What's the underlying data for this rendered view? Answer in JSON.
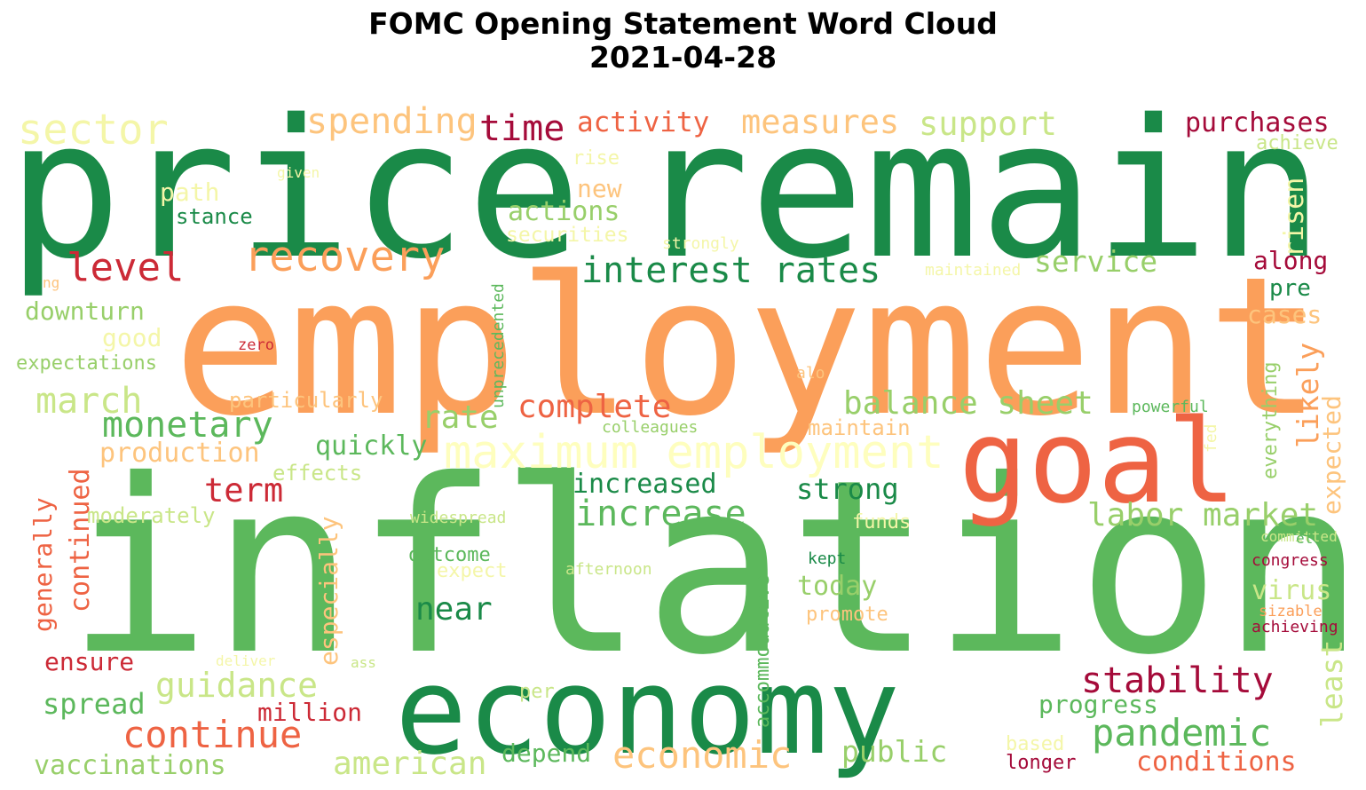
{
  "title": {
    "line1": "FOMC Opening Statement Word Cloud",
    "line2": "2021-04-28"
  },
  "colors": {
    "dark_green": "#1a8a48",
    "green": "#5cb85c",
    "light_green": "#98cf6a",
    "pale_green": "#c9e688",
    "pale_yellow": "#f4f6a8",
    "cream": "#fefebe",
    "light_orange": "#fdc47d",
    "orange": "#fb9f5a",
    "red_orange": "#ee6343",
    "red": "#cc2a36",
    "crimson": "#a50b3a"
  },
  "words": [
    {
      "text": "price",
      "color": "dark_green"
    },
    {
      "text": "remain",
      "color": "dark_green"
    },
    {
      "text": "employment",
      "color": "orange"
    },
    {
      "text": "inflation",
      "color": "green"
    },
    {
      "text": "goal",
      "color": "red_orange"
    },
    {
      "text": "economy",
      "color": "dark_green"
    },
    {
      "text": "maximum employment",
      "color": "cream"
    },
    {
      "text": "sector",
      "color": "pale_yellow"
    },
    {
      "text": "spending",
      "color": "light_orange"
    },
    {
      "text": "time",
      "color": "crimson"
    },
    {
      "text": "activity",
      "color": "red_orange"
    },
    {
      "text": "measures",
      "color": "light_orange"
    },
    {
      "text": "support",
      "color": "pale_green"
    },
    {
      "text": "purchases",
      "color": "crimson"
    },
    {
      "text": "achieve",
      "color": "pale_green"
    },
    {
      "text": "rise",
      "color": "pale_yellow"
    },
    {
      "text": "given",
      "color": "pale_yellow"
    },
    {
      "text": "path",
      "color": "pale_yellow"
    },
    {
      "text": "new",
      "color": "light_orange"
    },
    {
      "text": "stance",
      "color": "dark_green"
    },
    {
      "text": "actions",
      "color": "light_green"
    },
    {
      "text": "securities",
      "color": "pale_yellow"
    },
    {
      "text": "strongly",
      "color": "pale_yellow"
    },
    {
      "text": "risen",
      "color": "pale_yellow"
    },
    {
      "text": "level",
      "color": "red"
    },
    {
      "text": "recovery",
      "color": "orange"
    },
    {
      "text": "interest rates",
      "color": "dark_green"
    },
    {
      "text": "service",
      "color": "light_green"
    },
    {
      "text": "maintained",
      "color": "pale_yellow"
    },
    {
      "text": "along",
      "color": "crimson"
    },
    {
      "text": "ng",
      "color": "light_orange"
    },
    {
      "text": "pre",
      "color": "dark_green"
    },
    {
      "text": "downturn",
      "color": "light_green"
    },
    {
      "text": "cases",
      "color": "light_orange"
    },
    {
      "text": "good",
      "color": "pale_yellow"
    },
    {
      "text": "zero",
      "color": "red"
    },
    {
      "text": "unprecedented",
      "color": "green"
    },
    {
      "text": "expectations",
      "color": "light_green"
    },
    {
      "text": "alo",
      "color": "light_orange"
    },
    {
      "text": "likely",
      "color": "orange"
    },
    {
      "text": "march",
      "color": "pale_green"
    },
    {
      "text": "particularly",
      "color": "light_orange"
    },
    {
      "text": "monetary",
      "color": "green"
    },
    {
      "text": "rate",
      "color": "light_green"
    },
    {
      "text": "complete",
      "color": "red_orange"
    },
    {
      "text": "balance sheet",
      "color": "light_green"
    },
    {
      "text": "powerful",
      "color": "green"
    },
    {
      "text": "everything",
      "color": "light_green"
    },
    {
      "text": "expected",
      "color": "light_orange"
    },
    {
      "text": "colleagues",
      "color": "light_green"
    },
    {
      "text": "maintain",
      "color": "light_orange"
    },
    {
      "text": "fed",
      "color": "pale_yellow"
    },
    {
      "text": "continued",
      "color": "red_orange"
    },
    {
      "text": "quickly",
      "color": "green"
    },
    {
      "text": "production",
      "color": "light_orange"
    },
    {
      "text": "effects",
      "color": "pale_green"
    },
    {
      "text": "term",
      "color": "red"
    },
    {
      "text": "increased",
      "color": "dark_green"
    },
    {
      "text": "strong",
      "color": "dark_green"
    },
    {
      "text": "generally",
      "color": "red_orange"
    },
    {
      "text": "moderately",
      "color": "pale_green"
    },
    {
      "text": "increase",
      "color": "green"
    },
    {
      "text": "labor market",
      "color": "light_green"
    },
    {
      "text": "widespread",
      "color": "pale_green"
    },
    {
      "text": "funds",
      "color": "pale_yellow"
    },
    {
      "text": "especially",
      "color": "light_orange"
    },
    {
      "text": "committed",
      "color": "pale_green"
    },
    {
      "text": "outcome",
      "color": "green"
    },
    {
      "text": "expect",
      "color": "pale_yellow"
    },
    {
      "text": "afternoon",
      "color": "pale_green"
    },
    {
      "text": "et",
      "color": "green"
    },
    {
      "text": "kept",
      "color": "dark_green"
    },
    {
      "text": "congress",
      "color": "crimson"
    },
    {
      "text": "accommodative",
      "color": "green"
    },
    {
      "text": "today",
      "color": "light_green"
    },
    {
      "text": "virus",
      "color": "pale_green"
    },
    {
      "text": "near",
      "color": "dark_green"
    },
    {
      "text": "promote",
      "color": "light_orange"
    },
    {
      "text": "sizable",
      "color": "orange"
    },
    {
      "text": "achieving",
      "color": "crimson"
    },
    {
      "text": "ensure",
      "color": "red"
    },
    {
      "text": "deliver",
      "color": "pale_yellow"
    },
    {
      "text": "ass",
      "color": "pale_green"
    },
    {
      "text": "least",
      "color": "pale_green"
    },
    {
      "text": "guidance",
      "color": "pale_green"
    },
    {
      "text": "stability",
      "color": "crimson"
    },
    {
      "text": "spread",
      "color": "green"
    },
    {
      "text": "per",
      "color": "pale_green"
    },
    {
      "text": "million",
      "color": "red"
    },
    {
      "text": "progress",
      "color": "green"
    },
    {
      "text": "continue",
      "color": "red_orange"
    },
    {
      "text": "pandemic",
      "color": "green"
    },
    {
      "text": "depend",
      "color": "green"
    },
    {
      "text": "economic",
      "color": "light_orange"
    },
    {
      "text": "public",
      "color": "light_green"
    },
    {
      "text": "based",
      "color": "pale_yellow"
    },
    {
      "text": "american",
      "color": "pale_green"
    },
    {
      "text": "vaccinations",
      "color": "light_green"
    },
    {
      "text": "longer",
      "color": "crimson"
    },
    {
      "text": "conditions",
      "color": "red_orange"
    }
  ]
}
